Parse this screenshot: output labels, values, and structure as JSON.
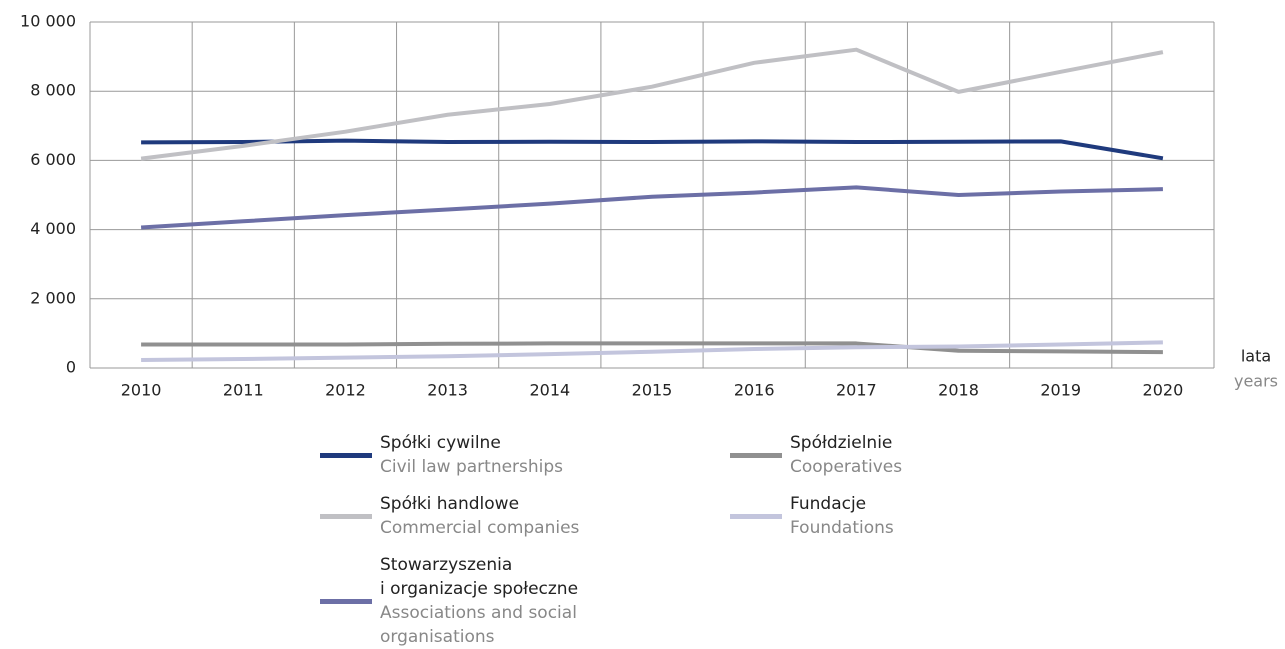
{
  "chart_data": {
    "type": "line",
    "categories": [
      "2010",
      "2011",
      "2012",
      "2013",
      "2014",
      "2015",
      "2016",
      "2017",
      "2018",
      "2019",
      "2020"
    ],
    "x_label": "lata",
    "x_label_en": "years",
    "ylim": [
      0,
      10000
    ],
    "yticks": [
      0,
      {
        "value": 2000,
        "label": "2 000"
      },
      {
        "value": 4000,
        "label": "4 000"
      },
      {
        "value": 6000,
        "label": "6 000"
      },
      {
        "value": 8000,
        "label": "8 000"
      },
      {
        "value": 10000,
        "label": "10 000"
      }
    ],
    "grid": true,
    "series": [
      {
        "name": "Spółki cywilne",
        "name_en": "Civil law partnerships",
        "color": "#1f3a7d",
        "values": [
          6520,
          6530,
          6570,
          6530,
          6540,
          6530,
          6550,
          6530,
          6540,
          6550,
          6060
        ]
      },
      {
        "name": "Spółki handlowe",
        "name_en": "Commercial companies",
        "color": "#c0c0c4",
        "values": [
          6050,
          6420,
          6830,
          7320,
          7630,
          8130,
          8820,
          9200,
          7980,
          8560,
          9130
        ]
      },
      {
        "name": "Stowarzyszenia\ni organizacje społeczne",
        "name_en": "Associations and social\norganisations",
        "color": "#6c6fa6",
        "values": [
          4060,
          4240,
          4420,
          4580,
          4750,
          4950,
          5070,
          5220,
          5000,
          5100,
          5170
        ]
      },
      {
        "name": "Spółdzielnie",
        "name_en": "Cooperatives",
        "color": "#909090",
        "values": [
          680,
          680,
          680,
          700,
          710,
          710,
          710,
          710,
          500,
          480,
          460
        ]
      },
      {
        "name": "Fundacje",
        "name_en": "Foundations",
        "color": "#c3c5dd",
        "values": [
          230,
          260,
          300,
          340,
          400,
          470,
          550,
          600,
          620,
          680,
          740
        ]
      }
    ]
  }
}
